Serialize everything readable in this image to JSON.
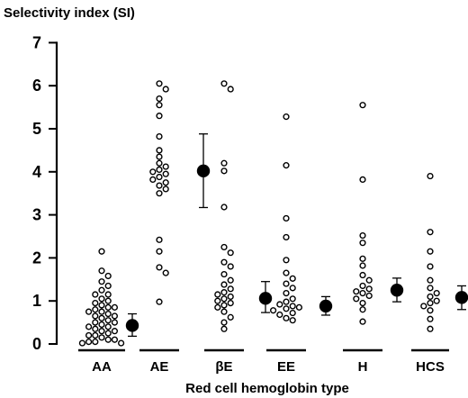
{
  "chart_data": {
    "type": "scatter",
    "ylabel": "Selectivity index (SI)",
    "xlabel": "Red cell hemoglobin type",
    "ylim": [
      0,
      7
    ],
    "yticks": [
      "0",
      "1",
      "2",
      "3",
      "4",
      "5",
      "6",
      "7"
    ],
    "categories": [
      "AA",
      "AE",
      "βE",
      "EE",
      "H",
      "HCS"
    ],
    "grid": false,
    "series": [
      {
        "category": "AA",
        "points": [
          2.15,
          1.7,
          1.58,
          1.45,
          1.35,
          1.25,
          1.15,
          1.15,
          1.05,
          1.0,
          0.95,
          0.9,
          0.85,
          0.85,
          0.8,
          0.75,
          0.75,
          0.7,
          0.65,
          0.65,
          0.6,
          0.55,
          0.5,
          0.5,
          0.45,
          0.4,
          0.4,
          0.35,
          0.3,
          0.3,
          0.25,
          0.2,
          0.2,
          0.15,
          0.1,
          0.1,
          0.05,
          0.05,
          0.02,
          0.02
        ],
        "mean": 0.43,
        "err_low": 0.18,
        "err_high": 0.7
      },
      {
        "category": "AE",
        "points": [
          6.05,
          5.92,
          5.7,
          5.55,
          5.3,
          4.82,
          4.5,
          4.35,
          4.2,
          4.12,
          4.05,
          4.0,
          3.95,
          3.88,
          3.82,
          3.75,
          3.68,
          3.6,
          3.5,
          2.42,
          2.15,
          1.78,
          1.65,
          0.98
        ],
        "mean": 4.02,
        "err_low": 3.17,
        "err_high": 4.88
      },
      {
        "category": "βE",
        "points": [
          6.05,
          5.92,
          4.2,
          4.02,
          3.18,
          2.25,
          2.12,
          1.9,
          1.8,
          1.62,
          1.48,
          1.38,
          1.28,
          1.2,
          1.15,
          1.1,
          1.05,
          1.0,
          0.95,
          0.9,
          0.85,
          0.75,
          0.62,
          0.5,
          0.35
        ],
        "mean": 1.06,
        "err_low": 0.73,
        "err_high": 1.45
      },
      {
        "category": "EE",
        "points": [
          5.28,
          4.15,
          2.92,
          2.48,
          1.95,
          1.65,
          1.52,
          1.4,
          1.3,
          1.18,
          1.05,
          0.98,
          0.92,
          0.88,
          0.85,
          0.82,
          0.78,
          0.72,
          0.68,
          0.6,
          0.55
        ],
        "mean": 0.88,
        "err_low": 0.67,
        "err_high": 1.1
      },
      {
        "category": "H",
        "points": [
          5.55,
          3.82,
          2.52,
          2.35,
          1.98,
          1.82,
          1.6,
          1.48,
          1.35,
          1.28,
          1.22,
          1.18,
          1.12,
          1.05,
          0.95,
          0.8,
          0.52
        ],
        "mean": 1.25,
        "err_low": 0.98,
        "err_high": 1.53
      },
      {
        "category": "HCS",
        "points": [
          3.9,
          2.6,
          2.15,
          1.8,
          1.48,
          1.3,
          1.18,
          1.1,
          1.0,
          0.95,
          0.88,
          0.78,
          0.58,
          0.35
        ],
        "mean": 1.08,
        "err_low": 0.8,
        "err_high": 1.35
      }
    ]
  }
}
